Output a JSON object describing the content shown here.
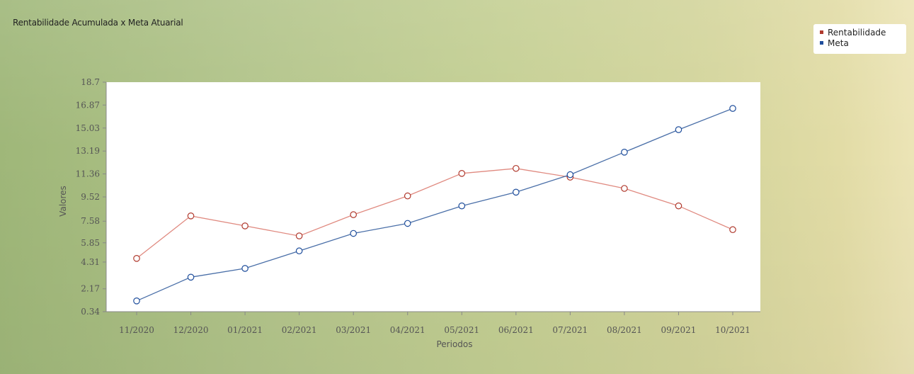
{
  "chart_data": {
    "type": "line",
    "title": "Rentabilidade Acumulada x Meta Atuarial",
    "xlabel": "Periodos",
    "ylabel": "Valores",
    "categories": [
      "11/2020",
      "12/2020",
      "01/2021",
      "02/2021",
      "03/2021",
      "04/2021",
      "05/2021",
      "06/2021",
      "07/2021",
      "08/2021",
      "09/2021",
      "10/2021"
    ],
    "y_ticks": [
      "0.34",
      "2.17",
      "4.31",
      "5.85",
      "7.58",
      "9.52",
      "11.36",
      "13.19",
      "15.03",
      "16.87",
      "18.7"
    ],
    "ylim": [
      0.34,
      18.7
    ],
    "series": [
      {
        "name": "Rentabilidade",
        "color": "#b03a2e",
        "line_color": "#e08a80",
        "values": [
          4.6,
          8.0,
          7.2,
          6.4,
          8.1,
          9.6,
          11.4,
          11.8,
          11.1,
          10.2,
          8.8,
          6.9
        ]
      },
      {
        "name": "Meta",
        "color": "#1f4e9c",
        "line_color": "#4a6fa8",
        "values": [
          1.2,
          3.1,
          3.8,
          5.2,
          6.6,
          7.4,
          8.8,
          9.9,
          11.3,
          13.1,
          14.9,
          16.6
        ]
      }
    ],
    "grid": false,
    "legend_position": "top-right"
  }
}
